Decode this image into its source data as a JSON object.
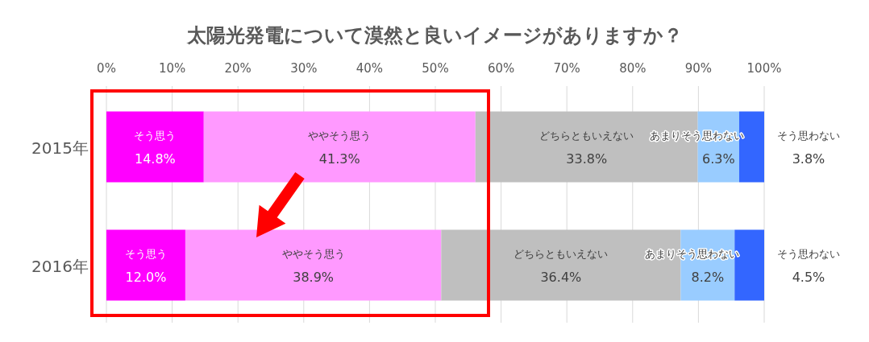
{
  "chart_data": {
    "type": "bar",
    "orientation": "horizontal",
    "stacked": true,
    "title": "太陽光発電について漠然と良いイメージがありますか？",
    "categories": [
      "2015年",
      "2016年"
    ],
    "xlim": [
      0,
      100
    ],
    "xticks": [
      {
        "value": 0,
        "label": "0%"
      },
      {
        "value": 10,
        "label": "10%"
      },
      {
        "value": 20,
        "label": "20%"
      },
      {
        "value": 30,
        "label": "30%"
      },
      {
        "value": 40,
        "label": "40%"
      },
      {
        "value": 50,
        "label": "50%"
      },
      {
        "value": 60,
        "label": "60%"
      },
      {
        "value": 70,
        "label": "70%"
      },
      {
        "value": 80,
        "label": "80%"
      },
      {
        "value": 90,
        "label": "90%"
      },
      {
        "value": 100,
        "label": "100%"
      }
    ],
    "grid": "x",
    "legend": false,
    "data_labels": true,
    "series": [
      {
        "name": "そう思う",
        "color": "#ff00ff",
        "values": [
          14.8,
          12.0
        ],
        "value_labels": [
          "14.8%",
          "12.0%"
        ]
      },
      {
        "name": "ややそう思う",
        "color": "#ff99ff",
        "values": [
          41.3,
          38.9
        ],
        "value_labels": [
          "41.3%",
          "38.9%"
        ]
      },
      {
        "name": "どちらともいえない",
        "color": "#bfbfbf",
        "values": [
          33.8,
          36.4
        ],
        "value_labels": [
          "33.8%",
          "36.4%"
        ]
      },
      {
        "name": "あまりそう思わない",
        "color": "#99ccff",
        "values": [
          6.3,
          8.2
        ],
        "value_labels": [
          "6.3%",
          "8.2%"
        ]
      },
      {
        "name": "そう思わない",
        "color": "#3366ff",
        "values": [
          3.8,
          4.5
        ],
        "value_labels": [
          "3.8%",
          "4.5%"
        ]
      }
    ]
  }
}
